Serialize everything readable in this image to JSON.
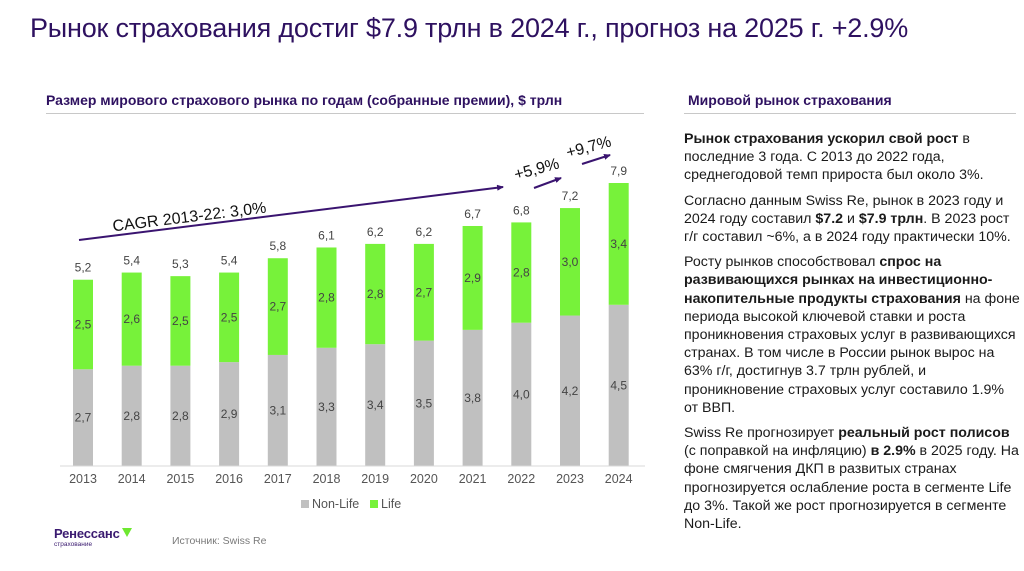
{
  "header": {
    "title": "Рынок страхования достиг $7.9 трлн в 2024 г., прогноз на 2025 г. +2.9%"
  },
  "left_section": {
    "title": "Размер мирового страхового рынка по годам (собранные премии), $ трлн",
    "source": "Источник: Swiss Re"
  },
  "right_section": {
    "title": "Мировой рынок страхования",
    "paragraphs": [
      [
        {
          "text": "Рынок страхования ускорил свой рост",
          "bold": true
        },
        {
          "text": " в последние 3 года. С 2013 до 2022 года, среднегодовой темп прироста был около 3%.",
          "bold": false
        }
      ],
      [
        {
          "text": "Согласно данным Swiss Re, рынок в 2023 году и 2024 году составил ",
          "bold": false
        },
        {
          "text": "$7.2",
          "bold": true
        },
        {
          "text": " и ",
          "bold": false
        },
        {
          "text": "$7.9 трлн",
          "bold": true
        },
        {
          "text": ". В 2023 рост г/г составил ~6%, а в 2024 году практически 10%.",
          "bold": false
        }
      ],
      [
        {
          "text": "Росту рынков способствовал ",
          "bold": false
        },
        {
          "text": "спрос на развивающихся рынках на инвестиционно-накопительные продукты страхования",
          "bold": true
        },
        {
          "text": " на фоне периода высокой ключевой ставки и роста проникновения страховых услуг в развивающихся странах. В том числе в России рынок вырос на 63% г/г, достигнув 3.7 трлн рублей, и проникновение страховых услуг составило 1.9% от ВВП.",
          "bold": false
        }
      ],
      [
        {
          "text": "Swiss Re прогнозирует ",
          "bold": false
        },
        {
          "text": "реальный рост полисов",
          "bold": true
        },
        {
          "text": " (с поправкой на инфляцию) ",
          "bold": false
        },
        {
          "text": "в 2.9%",
          "bold": true
        },
        {
          "text": " в 2025 году. На фоне смягчения ДКП в развитых странах прогнозируется ослабление роста в сегменте Life до 3%. Такой же рост прогнозируется в сегменте Non-Life.",
          "bold": false
        }
      ]
    ]
  },
  "logo": {
    "name": "Ренессанс",
    "sub": "страхование"
  },
  "colors": {
    "title": "#2e1160",
    "non_life": "#c0c0c0",
    "life": "#77f23a",
    "arrow": "#3a1470",
    "label": "#444444"
  },
  "chart_data": {
    "type": "bar",
    "stacked": true,
    "title": "Размер мирового страхового рынка по годам (собранные премии), $ трлн",
    "xlabel": "",
    "ylabel": "",
    "ylim": [
      0,
      7.9
    ],
    "grid": false,
    "legend_position": "bottom",
    "categories": [
      "2013",
      "2014",
      "2015",
      "2016",
      "2017",
      "2018",
      "2019",
      "2020",
      "2021",
      "2022",
      "2023",
      "2024"
    ],
    "series": [
      {
        "name": "Non-Life",
        "values": [
          2.7,
          2.8,
          2.8,
          2.9,
          3.1,
          3.3,
          3.4,
          3.5,
          3.8,
          4.0,
          4.2,
          4.5
        ],
        "labels": [
          "2,7",
          "2,8",
          "2,8",
          "2,9",
          "3,1",
          "3,3",
          "3,4",
          "3,5",
          "3,8",
          "4,0",
          "4,2",
          "4,5"
        ]
      },
      {
        "name": "Life",
        "values": [
          2.5,
          2.6,
          2.5,
          2.5,
          2.7,
          2.8,
          2.8,
          2.7,
          2.9,
          2.8,
          3.0,
          3.4
        ],
        "labels": [
          "2,5",
          "2,6",
          "2,5",
          "2,5",
          "2,7",
          "2,8",
          "2,8",
          "2,7",
          "2,9",
          "2,8",
          "3,0",
          "3,4"
        ]
      }
    ],
    "totals": [
      5.2,
      5.4,
      5.3,
      5.4,
      5.8,
      6.1,
      6.2,
      6.2,
      6.7,
      6.8,
      7.2,
      7.9
    ],
    "total_labels": [
      "5,2",
      "5,4",
      "5,3",
      "5,4",
      "5,8",
      "6,1",
      "6,2",
      "6,2",
      "6,7",
      "6,8",
      "7,2",
      "7,9"
    ],
    "annotations": [
      {
        "text": "CAGR 2013-22: 3,0%",
        "from": "2013",
        "to": "2022"
      },
      {
        "text": "+5,9%",
        "from": "2022",
        "to": "2023"
      },
      {
        "text": "+9,7%",
        "from": "2023",
        "to": "2024"
      }
    ]
  }
}
